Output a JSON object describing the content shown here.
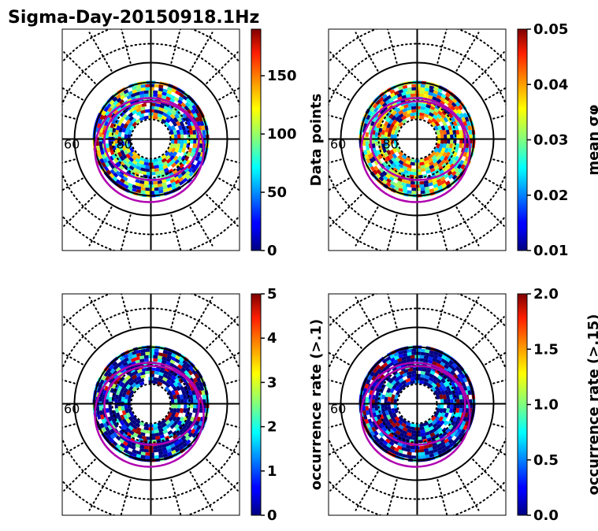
{
  "title": "Sigma-Day-20150918.1Hz",
  "chart_data": [
    {
      "type": "heatmap",
      "projection": "polar",
      "colormap": "jet",
      "colorbar_label": "Data points",
      "colorbar_ticks": [
        "0",
        "50",
        "100",
        "150"
      ],
      "colorbar_tick_values": [
        0,
        50,
        100,
        150
      ],
      "clim": [
        0,
        190
      ],
      "lat_labels": [
        "60",
        "80"
      ],
      "lat_circles": [
        60,
        70,
        80
      ],
      "typical_value": 80,
      "value_spread": 70
    },
    {
      "type": "heatmap",
      "projection": "polar",
      "colormap": "jet",
      "colorbar_label": "mean σφ",
      "colorbar_ticks": [
        "0.01",
        "0.02",
        "0.03",
        "0.04",
        "0.05"
      ],
      "colorbar_tick_values": [
        0.01,
        0.02,
        0.03,
        0.04,
        0.05
      ],
      "clim": [
        0.01,
        0.05
      ],
      "lat_labels": [
        "60",
        "80"
      ],
      "lat_circles": [
        60,
        70,
        80
      ],
      "typical_value": 0.032,
      "value_spread": 0.012
    },
    {
      "type": "heatmap",
      "projection": "polar",
      "colormap": "jet",
      "colorbar_label": "occurrence rate (>.1)",
      "colorbar_ticks": [
        "0",
        "1",
        "2",
        "3",
        "4",
        "5"
      ],
      "colorbar_tick_values": [
        0,
        1,
        2,
        3,
        4,
        5
      ],
      "clim": [
        0,
        5
      ],
      "lat_labels": [
        "60"
      ],
      "lat_circles": [
        60,
        70,
        80
      ],
      "typical_value": 0.4,
      "value_spread": 2.5
    },
    {
      "type": "heatmap",
      "projection": "polar",
      "colormap": "jet",
      "colorbar_label": "occurrence rate (>.15)",
      "colorbar_ticks": [
        "0.0",
        "0.5",
        "1.0",
        "1.5",
        "2.0"
      ],
      "colorbar_tick_values": [
        0,
        0.5,
        1.0,
        1.5,
        2.0
      ],
      "clim": [
        0,
        2
      ],
      "lat_labels": [
        "60"
      ],
      "lat_circles": [
        60,
        70,
        80
      ],
      "typical_value": 0.1,
      "value_spread": 0.8
    }
  ],
  "colors": {
    "oval": "#b000b0",
    "grid": "#000000"
  }
}
